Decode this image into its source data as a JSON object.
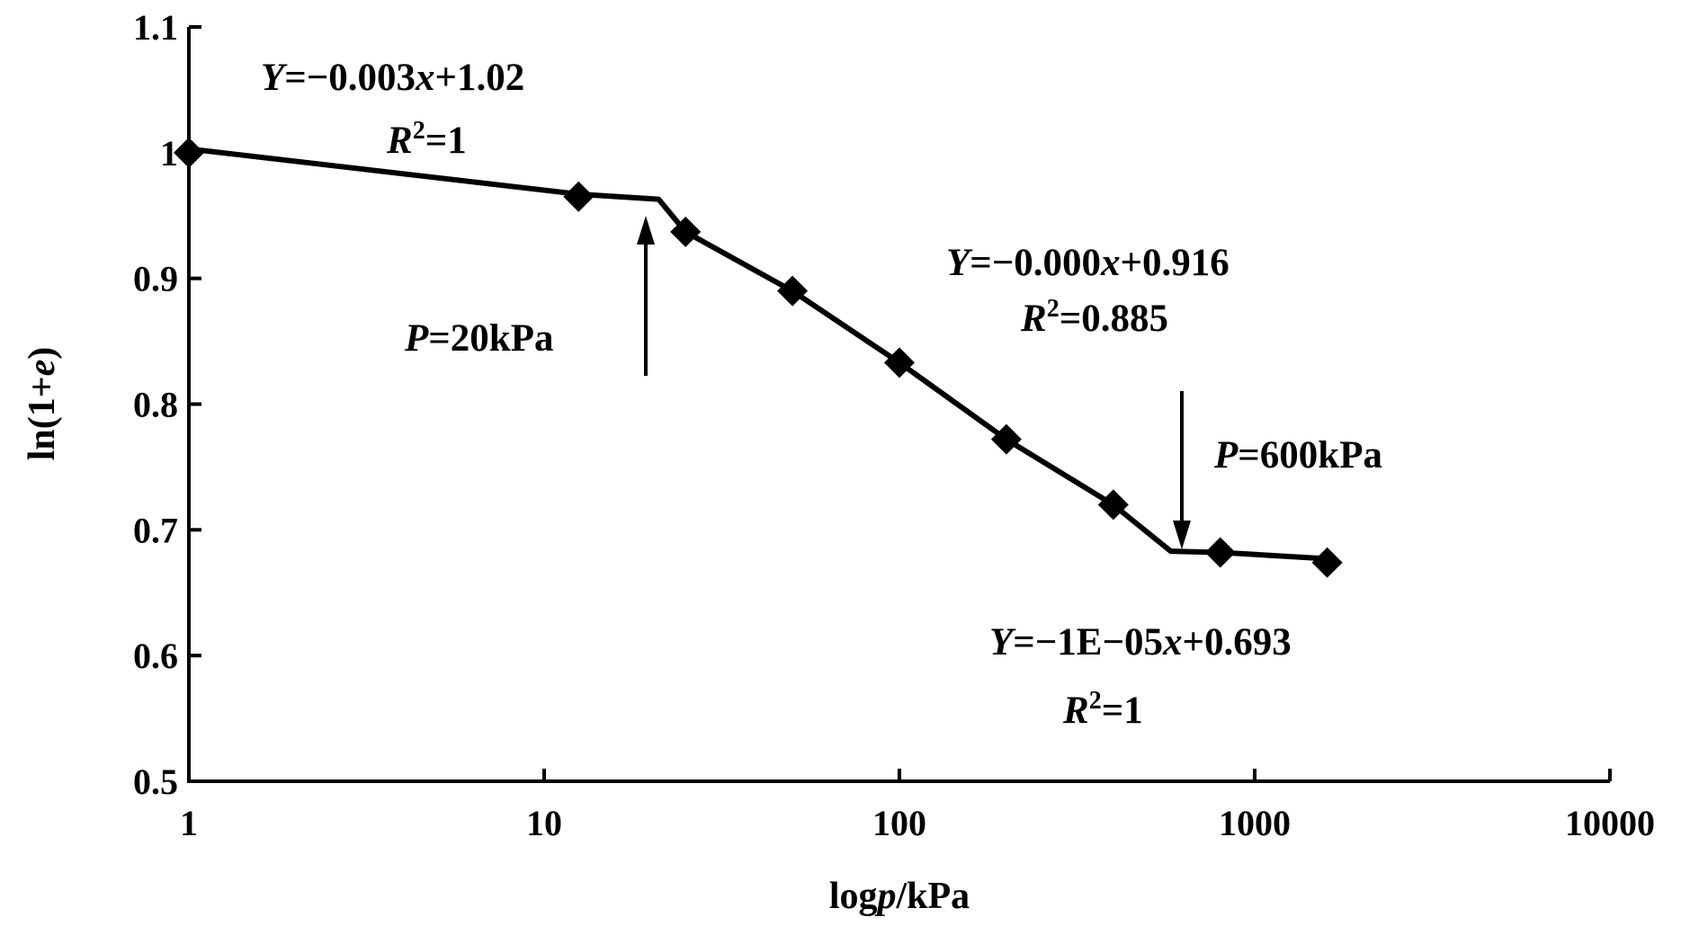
{
  "chart_data": {
    "type": "line",
    "xscale": "log",
    "xlim": [
      1,
      10000
    ],
    "ylim": [
      0.5,
      1.1
    ],
    "xticks": [
      1,
      10,
      100,
      1000,
      10000
    ],
    "xtick_labels": [
      "1",
      "10",
      "100",
      "1000",
      "10000"
    ],
    "yticks": [
      0.5,
      0.6,
      0.7,
      0.8,
      0.9,
      1.0,
      1.1
    ],
    "ytick_labels": [
      "0.5",
      "0.6",
      "0.7",
      "0.8",
      "0.9",
      "1",
      "1.1"
    ],
    "xlabel": {
      "pre": "log",
      "var": "p",
      "post": "/kPa"
    },
    "ylabel": {
      "pre": "ln(1+",
      "var": "e",
      "post": ")"
    },
    "grid": false,
    "series": [
      {
        "x": [
          1,
          12.5,
          25,
          50,
          100,
          200,
          400,
          800,
          1600
        ],
        "y": [
          1.0,
          0.965,
          0.937,
          0.89,
          0.833,
          0.772,
          0.72,
          0.682,
          0.674
        ]
      }
    ],
    "fit_line": {
      "x": [
        1,
        12.5,
        21,
        25,
        50,
        100,
        200,
        400,
        580,
        800,
        1600
      ],
      "y": [
        1.003,
        0.967,
        0.963,
        0.937,
        0.89,
        0.833,
        0.772,
        0.72,
        0.683,
        0.682,
        0.677
      ]
    },
    "annotations": [
      {
        "kind": "equation",
        "var": "Y",
        "rest": "=−0.003",
        "xvar": "x",
        "tail": "+1.02",
        "r2": "=1"
      },
      {
        "kind": "equation",
        "var": "Y",
        "rest": "=−0.000",
        "xvar": "x",
        "tail": "+0.916",
        "r2": "=0.885"
      },
      {
        "kind": "equation",
        "var": "Y",
        "rest": "=−1E−05",
        "xvar": "x",
        "tail": "+0.693",
        "r2": "=1"
      },
      {
        "kind": "marker",
        "var": "P",
        "value": "=20kPa",
        "x": 20,
        "direction": "up"
      },
      {
        "kind": "marker",
        "var": "P",
        "value": "=600kPa",
        "x": 600,
        "direction": "down"
      }
    ],
    "r2_symbol": "R",
    "r2_exp": "2"
  }
}
